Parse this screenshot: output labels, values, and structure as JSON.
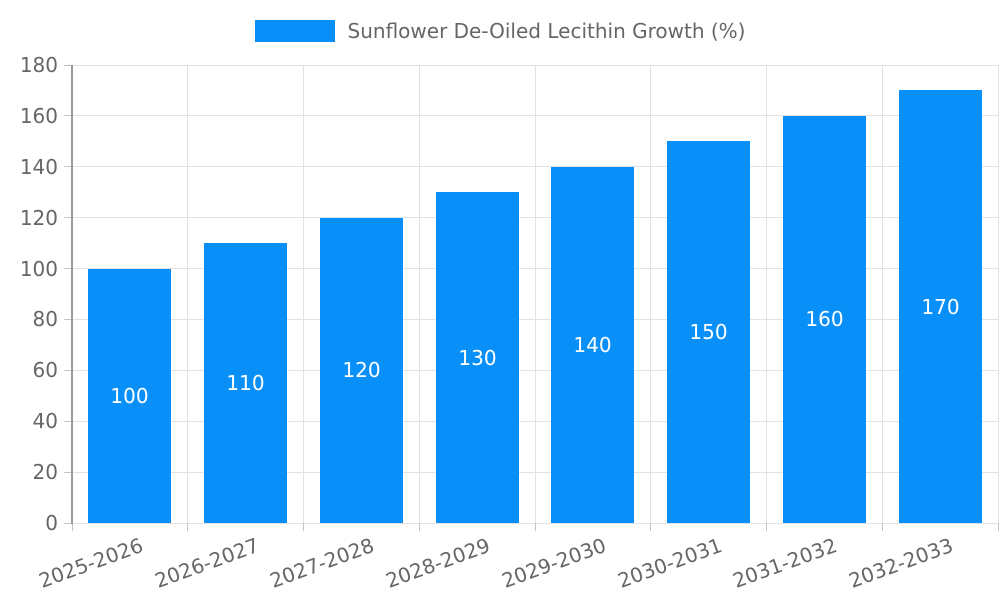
{
  "chart_data": {
    "type": "bar",
    "title": "Sunflower De-Oiled Lecithin Growth (%)",
    "categories": [
      "2025-2026",
      "2026-2027",
      "2027-2028",
      "2028-2029",
      "2029-2030",
      "2030-2031",
      "2031-2032",
      "2032-2033"
    ],
    "values": [
      100,
      110,
      120,
      130,
      140,
      150,
      160,
      170
    ],
    "value_labels": [
      "100",
      "110",
      "120",
      "130",
      "140",
      "150",
      "160",
      "170"
    ],
    "yticks": [
      0,
      20,
      40,
      60,
      80,
      100,
      120,
      140,
      160,
      180
    ],
    "ytick_labels": [
      "0",
      "20",
      "40",
      "60",
      "80",
      "100",
      "120",
      "140",
      "160",
      "180"
    ],
    "ylim": [
      0,
      180
    ],
    "xlabel": "",
    "ylabel": "",
    "grid": true,
    "legend_position": "top-center",
    "colors": {
      "bar": "#0990f8",
      "text": "#666666",
      "axis_line": "#9a9a9a",
      "gridline": "#e2e2e2",
      "tick_mark": "#c4c4c4",
      "value_label": "#ffffff"
    }
  }
}
